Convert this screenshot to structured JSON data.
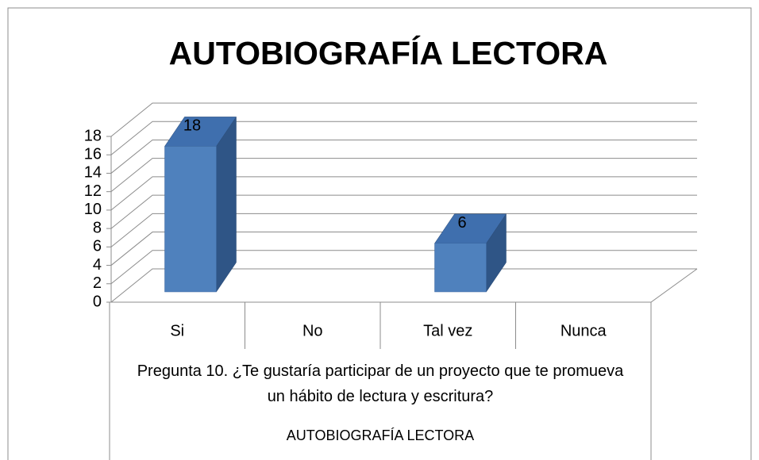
{
  "chart_data": {
    "type": "bar3d",
    "title": "AUTOBIOGRAFÍA LECTORA",
    "categories": [
      "Si",
      "No",
      "Tal vez",
      "Nunca"
    ],
    "values": [
      18,
      null,
      6,
      null
    ],
    "color": "#4f81bd",
    "category_group": "Pregunta 10. ¿Te gustaría participar de un proyecto que te promueva un hábito de lectura y escritura?",
    "category_super_group": "AUTOBIOGRAFÍA LECTORA",
    "ylim": [
      0,
      18
    ],
    "yticks": [
      0,
      2,
      4,
      6,
      8,
      10,
      12,
      14,
      16,
      18
    ],
    "grid": true
  }
}
